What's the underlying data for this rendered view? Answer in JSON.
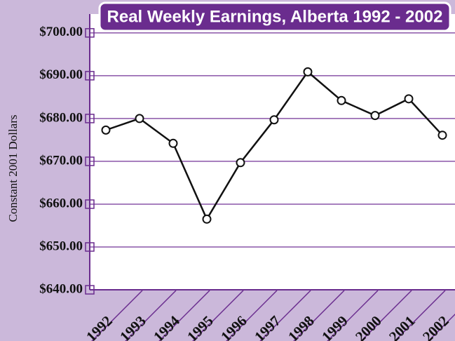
{
  "chart_data": {
    "type": "line",
    "title": "Real Weekly Earnings, Alberta 1992 - 2002",
    "y_label": "Constant 2001 Dollars",
    "categories": [
      "1992",
      "1993",
      "1994",
      "1995",
      "1996",
      "1997",
      "1998",
      "1999",
      "2000",
      "2001",
      "2002"
    ],
    "series": [
      {
        "name": "Real Weekly Earnings",
        "color": "#111111",
        "values": [
          677.3,
          680.0,
          674.2,
          656.5,
          669.7,
          679.7,
          690.9,
          684.2,
          680.7,
          684.6,
          676.1
        ]
      }
    ],
    "ylim": [
      640,
      704.4
    ],
    "yticks": [
      {
        "value": 640,
        "label": "$640.00"
      },
      {
        "value": 650,
        "label": "$650.00"
      },
      {
        "value": 660,
        "label": "$660.00"
      },
      {
        "value": 670,
        "label": "$670.00"
      },
      {
        "value": 680,
        "label": "$680.00"
      },
      {
        "value": 690,
        "label": "$690.00"
      },
      {
        "value": 700,
        "label": "$700.00"
      }
    ],
    "grid": true,
    "grid_color": "#8a55a8"
  }
}
